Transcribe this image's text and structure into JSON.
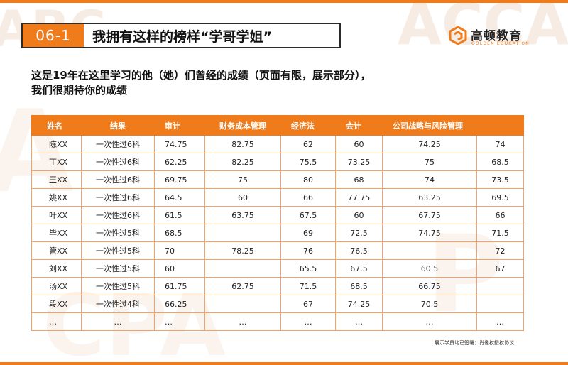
{
  "header": {
    "section_num": "06-1",
    "title": "我拥有这样的榜样“学哥学姐”"
  },
  "logo": {
    "name_cn": "高顿教育",
    "name_en": "GOLDEN EDUCATION",
    "accent": "#f07b1a"
  },
  "intro": {
    "line1": "这是19年在这里学习的他（她）们曾经的成绩（页面有限，展示部分），",
    "line2": "我们很期待你的成绩"
  },
  "table": {
    "headers": [
      "姓名",
      "结果",
      "审计",
      "财务成本管理",
      "经济法",
      "会计",
      "公司战略与风险管理",
      ""
    ],
    "rows": [
      [
        "陈XX",
        "一次性过6科",
        "74.75",
        "82.75",
        "62",
        "60",
        "74.25",
        "74"
      ],
      [
        "丁XX",
        "一次性过6科",
        "62.25",
        "82.25",
        "75.5",
        "73.25",
        "75",
        "68.5"
      ],
      [
        "王XX",
        "一次性过6科",
        "69.75",
        "75",
        "80",
        "68",
        "74",
        "73.5"
      ],
      [
        "姚XX",
        "一次性过6科",
        "64.5",
        "60",
        "66",
        "77.75",
        "63.25",
        "69.5"
      ],
      [
        "叶XX",
        "一次性过6科",
        "61.5",
        "63.75",
        "67.5",
        "60",
        "67.75",
        "66"
      ],
      [
        "毕XX",
        "一次性过5科",
        "68.5",
        "",
        "69",
        "72.5",
        "74.75",
        "71.5"
      ],
      [
        "管XX",
        "一次性过5科",
        "70",
        "78.25",
        "76",
        "76.5",
        "",
        "72"
      ],
      [
        "刘XX",
        "一次性过5科",
        "60",
        "",
        "65.5",
        "67.5",
        "60.5",
        "67"
      ],
      [
        "汤XX",
        "一次性过5科",
        "61.75",
        "62.75",
        "71.5",
        "68.5",
        "66.75",
        ""
      ],
      [
        "段XX",
        "一次性过4科",
        "66.25",
        "",
        "67",
        "74.25",
        "70.5",
        ""
      ],
      [
        "…",
        "…",
        "…",
        "…",
        "…",
        "…",
        "…",
        "…"
      ]
    ]
  },
  "footnote": "展示学员均已签署：肖像权授权协议"
}
